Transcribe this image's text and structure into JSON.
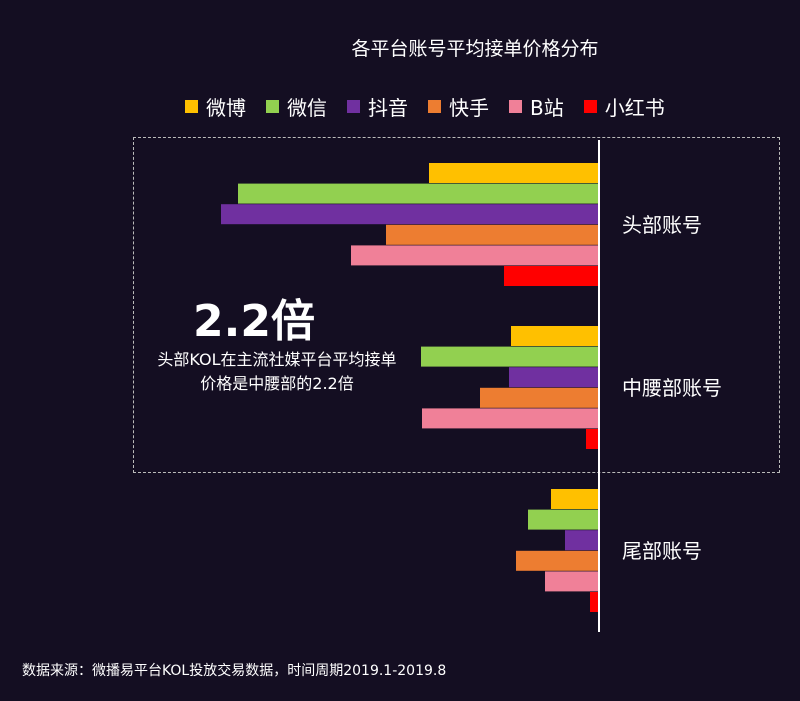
{
  "chart_data": {
    "type": "bar",
    "orientation": "horizontal-leftward",
    "title": "各平台账号平均接单价格分布",
    "categories": [
      "头部账号",
      "中腰部账号",
      "尾部账号"
    ],
    "series": [
      {
        "name": "微博",
        "color": "#ffc000",
        "values": [
          170,
          88,
          48
        ]
      },
      {
        "name": "微信",
        "color": "#92d050",
        "values": [
          361,
          178,
          71
        ]
      },
      {
        "name": "抖音",
        "color": "#7030a0",
        "values": [
          378,
          90,
          34
        ]
      },
      {
        "name": "快手",
        "color": "#ed7d31",
        "values": [
          213,
          119,
          83
        ]
      },
      {
        "name": "B站",
        "color": "#f08098",
        "values": [
          248,
          177,
          54
        ]
      },
      {
        "name": "小红书",
        "color": "#ff0000",
        "values": [
          95,
          13,
          9
        ]
      }
    ],
    "axis_ticks": false,
    "legend_position": "top"
  },
  "annotation": {
    "big": "2.2倍",
    "text": "头部KOL在主流社媒平台平均接单价格是中腰部的2.2倍"
  },
  "source": "数据来源：微播易平台KOL投放交易数据，时间周期2019.1-2019.8"
}
